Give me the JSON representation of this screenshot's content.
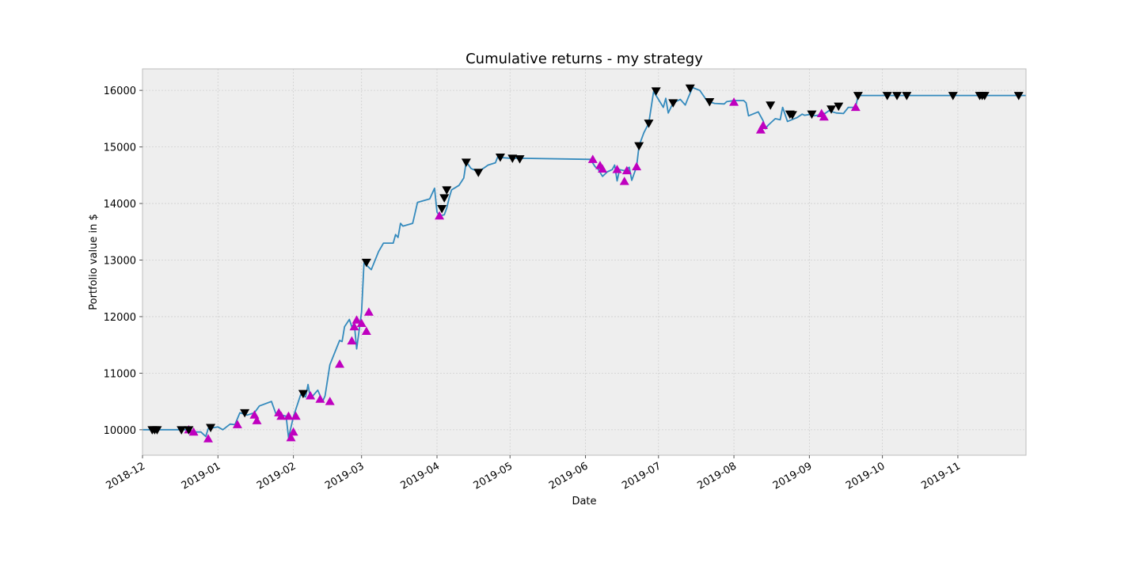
{
  "chart_data": {
    "type": "line",
    "title": "Cumulative returns - my strategy",
    "xlabel": "Date",
    "ylabel": "Portfolio value in $",
    "x_ticks": [
      "2018-12",
      "2019-01",
      "2019-02",
      "2019-03",
      "2019-04",
      "2019-05",
      "2019-06",
      "2019-07",
      "2019-08",
      "2019-09",
      "2019-10",
      "2019-11"
    ],
    "x_range": [
      "2018-12-01",
      "2019-11-29"
    ],
    "y_ticks": [
      10000,
      11000,
      12000,
      13000,
      14000,
      15000,
      16000
    ],
    "ylim": [
      9550,
      16380
    ],
    "grid": true,
    "colors": {
      "line": "#348ABD",
      "buy_marker": "#BF00BF",
      "sell_marker": "#000000",
      "plot_background": "#EEEEEE",
      "grid": "#D0D0D0",
      "frame": "#BCBCBC"
    },
    "series": [
      {
        "values": [
          [
            "2018-12-01",
            10000
          ],
          [
            "2018-12-05",
            10000
          ],
          [
            "2018-12-10",
            10000
          ],
          [
            "2018-12-15",
            10000
          ],
          [
            "2018-12-19",
            10000
          ],
          [
            "2018-12-22",
            9960
          ],
          [
            "2018-12-25",
            9960
          ],
          [
            "2018-12-27",
            9880
          ],
          [
            "2018-12-28",
            10020
          ],
          [
            "2019-01-01",
            10050
          ],
          [
            "2019-01-03",
            10000
          ],
          [
            "2019-01-06",
            10100
          ],
          [
            "2019-01-08",
            10090
          ],
          [
            "2019-01-10",
            10300
          ],
          [
            "2019-01-13",
            10260
          ],
          [
            "2019-01-16",
            10300
          ],
          [
            "2019-01-18",
            10420
          ],
          [
            "2019-01-23",
            10500
          ],
          [
            "2019-01-25",
            10260
          ],
          [
            "2019-01-27",
            10260
          ],
          [
            "2019-01-29",
            10240
          ],
          [
            "2019-01-30",
            9860
          ],
          [
            "2019-02-01",
            10230
          ],
          [
            "2019-02-04",
            10620
          ],
          [
            "2019-02-06",
            10580
          ],
          [
            "2019-02-07",
            10800
          ],
          [
            "2019-02-08",
            10550
          ],
          [
            "2019-02-11",
            10700
          ],
          [
            "2019-02-13",
            10500
          ],
          [
            "2019-02-14",
            10600
          ],
          [
            "2019-02-16",
            11150
          ],
          [
            "2019-02-20",
            11580
          ],
          [
            "2019-02-21",
            11560
          ],
          [
            "2019-02-22",
            11820
          ],
          [
            "2019-02-24",
            11950
          ],
          [
            "2019-02-25",
            11820
          ],
          [
            "2019-02-26",
            11880
          ],
          [
            "2019-02-27",
            11430
          ],
          [
            "2019-02-28",
            11750
          ],
          [
            "2019-03-01",
            12080
          ],
          [
            "2019-03-02",
            12950
          ],
          [
            "2019-03-05",
            12830
          ],
          [
            "2019-03-08",
            13150
          ],
          [
            "2019-03-10",
            13300
          ],
          [
            "2019-03-14",
            13300
          ],
          [
            "2019-03-15",
            13450
          ],
          [
            "2019-03-16",
            13400
          ],
          [
            "2019-03-17",
            13650
          ],
          [
            "2019-03-18",
            13600
          ],
          [
            "2019-03-22",
            13650
          ],
          [
            "2019-03-24",
            14020
          ],
          [
            "2019-03-29",
            14080
          ],
          [
            "2019-03-31",
            14270
          ],
          [
            "2019-04-01",
            13850
          ],
          [
            "2019-04-02",
            13780
          ],
          [
            "2019-04-04",
            13800
          ],
          [
            "2019-04-05",
            13920
          ],
          [
            "2019-04-06",
            14100
          ],
          [
            "2019-04-07",
            14240
          ],
          [
            "2019-04-10",
            14320
          ],
          [
            "2019-04-12",
            14450
          ],
          [
            "2019-04-13",
            14740
          ],
          [
            "2019-04-15",
            14620
          ],
          [
            "2019-04-18",
            14560
          ],
          [
            "2019-04-22",
            14680
          ],
          [
            "2019-04-25",
            14720
          ],
          [
            "2019-04-26",
            14830
          ],
          [
            "2019-04-28",
            14810
          ],
          [
            "2019-05-01",
            14800
          ],
          [
            "2019-05-05",
            14800
          ],
          [
            "2019-06-03",
            14780
          ],
          [
            "2019-06-05",
            14650
          ],
          [
            "2019-06-06",
            14620
          ],
          [
            "2019-06-08",
            14480
          ],
          [
            "2019-06-10",
            14560
          ],
          [
            "2019-06-12",
            14600
          ],
          [
            "2019-06-13",
            14680
          ],
          [
            "2019-06-14",
            14400
          ],
          [
            "2019-06-15",
            14600
          ],
          [
            "2019-06-17",
            14580
          ],
          [
            "2019-06-19",
            14640
          ],
          [
            "2019-06-20",
            14410
          ],
          [
            "2019-06-22",
            14650
          ],
          [
            "2019-06-23",
            15020
          ],
          [
            "2019-06-25",
            15250
          ],
          [
            "2019-06-27",
            15420
          ],
          [
            "2019-06-29",
            15980
          ],
          [
            "2019-07-03",
            15700
          ],
          [
            "2019-07-04",
            15860
          ],
          [
            "2019-07-05",
            15600
          ],
          [
            "2019-07-07",
            15780
          ],
          [
            "2019-07-10",
            15840
          ],
          [
            "2019-07-12",
            15740
          ],
          [
            "2019-07-13",
            15850
          ],
          [
            "2019-07-15",
            16050
          ],
          [
            "2019-07-18",
            16000
          ],
          [
            "2019-07-21",
            15810
          ],
          [
            "2019-07-24",
            15770
          ],
          [
            "2019-07-28",
            15760
          ],
          [
            "2019-07-29",
            15800
          ],
          [
            "2019-08-01",
            15820
          ],
          [
            "2019-08-05",
            15820
          ],
          [
            "2019-08-06",
            15780
          ],
          [
            "2019-08-07",
            15550
          ],
          [
            "2019-08-11",
            15620
          ],
          [
            "2019-08-13",
            15460
          ],
          [
            "2019-08-14",
            15320
          ],
          [
            "2019-08-15",
            15380
          ],
          [
            "2019-08-18",
            15500
          ],
          [
            "2019-08-20",
            15480
          ],
          [
            "2019-08-21",
            15700
          ],
          [
            "2019-08-23",
            15450
          ],
          [
            "2019-08-27",
            15520
          ],
          [
            "2019-08-29",
            15580
          ],
          [
            "2019-08-30",
            15560
          ],
          [
            "2019-09-02",
            15580
          ],
          [
            "2019-09-03",
            15550
          ],
          [
            "2019-09-07",
            15580
          ],
          [
            "2019-09-09",
            15640
          ],
          [
            "2019-09-12",
            15600
          ],
          [
            "2019-09-15",
            15590
          ],
          [
            "2019-09-17",
            15700
          ],
          [
            "2019-09-20",
            15700
          ],
          [
            "2019-09-21",
            15910
          ],
          [
            "2019-10-01",
            15910
          ],
          [
            "2019-11-29",
            15910
          ]
        ]
      }
    ],
    "buy_markers": [
      [
        "2018-12-20",
        10000
      ],
      [
        "2018-12-22",
        9960
      ],
      [
        "2018-12-28",
        9840
      ],
      [
        "2019-01-09",
        10090
      ],
      [
        "2019-01-16",
        10260
      ],
      [
        "2019-01-17",
        10160
      ],
      [
        "2019-01-26",
        10300
      ],
      [
        "2019-01-27",
        10240
      ],
      [
        "2019-01-30",
        10240
      ],
      [
        "2019-01-31",
        9860
      ],
      [
        "2019-02-01",
        9960
      ],
      [
        "2019-02-02",
        10240
      ],
      [
        "2019-02-08",
        10600
      ],
      [
        "2019-02-12",
        10540
      ],
      [
        "2019-02-16",
        10500
      ],
      [
        "2019-02-20",
        11160
      ],
      [
        "2019-02-25",
        11570
      ],
      [
        "2019-02-26",
        11820
      ],
      [
        "2019-02-27",
        11940
      ],
      [
        "2019-03-01",
        11880
      ],
      [
        "2019-03-03",
        11740
      ],
      [
        "2019-03-04",
        12080
      ],
      [
        "2019-04-02",
        13780
      ],
      [
        "2019-06-04",
        14780
      ],
      [
        "2019-06-07",
        14670
      ],
      [
        "2019-06-08",
        14610
      ],
      [
        "2019-06-14",
        14600
      ],
      [
        "2019-06-17",
        14390
      ],
      [
        "2019-06-18",
        14580
      ],
      [
        "2019-06-22",
        14650
      ],
      [
        "2019-08-01",
        15790
      ],
      [
        "2019-08-12",
        15300
      ],
      [
        "2019-08-13",
        15380
      ],
      [
        "2019-09-06",
        15590
      ],
      [
        "2019-09-07",
        15530
      ],
      [
        "2019-09-20",
        15700
      ]
    ],
    "sell_markers": [
      [
        "2018-12-05",
        10000
      ],
      [
        "2018-12-06",
        10000
      ],
      [
        "2018-12-07",
        10000
      ],
      [
        "2018-12-17",
        10000
      ],
      [
        "2018-12-20",
        10000
      ],
      [
        "2018-12-29",
        10040
      ],
      [
        "2019-01-12",
        10300
      ],
      [
        "2019-02-05",
        10640
      ],
      [
        "2019-03-03",
        12960
      ],
      [
        "2019-04-03",
        13910
      ],
      [
        "2019-04-04",
        14100
      ],
      [
        "2019-04-05",
        14240
      ],
      [
        "2019-04-13",
        14730
      ],
      [
        "2019-04-18",
        14550
      ],
      [
        "2019-04-27",
        14820
      ],
      [
        "2019-05-02",
        14800
      ],
      [
        "2019-05-05",
        14790
      ],
      [
        "2019-06-23",
        15020
      ],
      [
        "2019-06-27",
        15420
      ],
      [
        "2019-06-30",
        15990
      ],
      [
        "2019-07-07",
        15780
      ],
      [
        "2019-07-14",
        16040
      ],
      [
        "2019-07-22",
        15800
      ],
      [
        "2019-08-16",
        15740
      ],
      [
        "2019-08-24",
        15580
      ],
      [
        "2019-08-25",
        15570
      ],
      [
        "2019-09-02",
        15580
      ],
      [
        "2019-09-10",
        15670
      ],
      [
        "2019-09-13",
        15720
      ],
      [
        "2019-09-21",
        15910
      ],
      [
        "2019-10-03",
        15910
      ],
      [
        "2019-10-07",
        15910
      ],
      [
        "2019-10-11",
        15910
      ],
      [
        "2019-10-30",
        15910
      ],
      [
        "2019-11-10",
        15910
      ],
      [
        "2019-11-11",
        15910
      ],
      [
        "2019-11-12",
        15910
      ],
      [
        "2019-11-26",
        15910
      ]
    ]
  }
}
